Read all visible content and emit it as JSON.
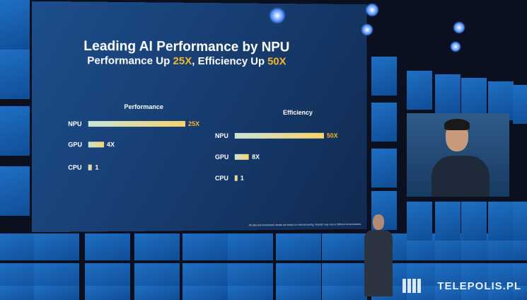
{
  "slide": {
    "title": "Leading AI Performance by NPU",
    "subtitle_prefix": "Performance Up ",
    "subtitle_perf": "25X",
    "subtitle_mid": ", Efficiency Up ",
    "subtitle_eff": "50X",
    "footnote": "All data and benchmark results are based on internal testing. Results may vary in different environments.",
    "accent_color": "#f5b630"
  },
  "chart_data": [
    {
      "type": "bar",
      "title": "Performance",
      "categories": [
        "NPU",
        "GPU",
        "CPU"
      ],
      "values": [
        25,
        4,
        1
      ],
      "labels": [
        "25X",
        "4X",
        "1"
      ],
      "orientation": "horizontal"
    },
    {
      "type": "bar",
      "title": "Efficiency",
      "categories": [
        "NPU",
        "GPU",
        "CPU"
      ],
      "values": [
        50,
        8,
        1
      ],
      "labels": [
        "50X",
        "8X",
        "1"
      ],
      "orientation": "horizontal"
    }
  ],
  "watermark": "TELEPOLIS.PL"
}
